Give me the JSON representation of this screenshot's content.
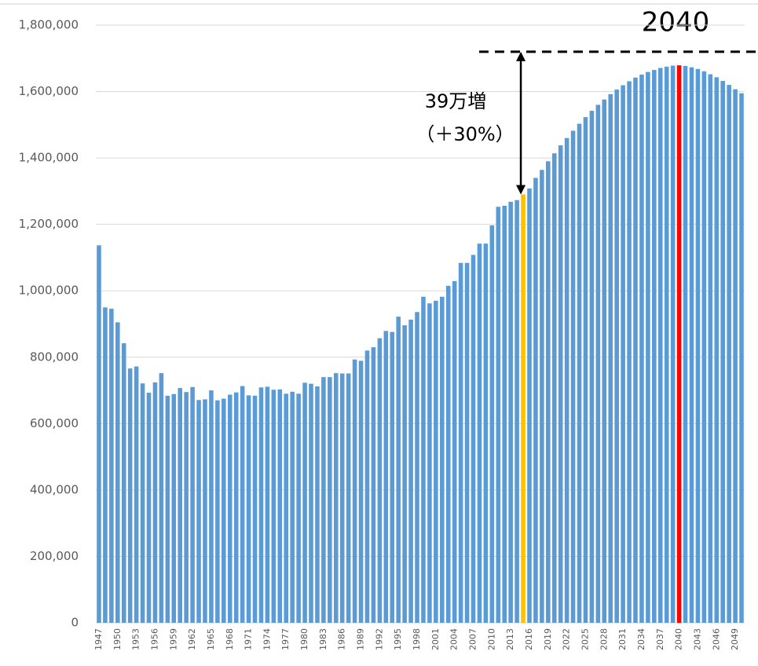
{
  "chart_data": {
    "type": "bar",
    "categories": [
      "1947",
      null,
      null,
      "1950",
      null,
      null,
      "1953",
      null,
      null,
      "1956",
      null,
      null,
      "1959",
      null,
      null,
      "1962",
      null,
      null,
      "1965",
      null,
      null,
      "1968",
      null,
      null,
      "1971",
      null,
      null,
      "1974",
      null,
      null,
      "1977",
      null,
      null,
      "1980",
      null,
      null,
      "1983",
      null,
      null,
      "1986",
      null,
      null,
      "1989",
      null,
      null,
      "1992",
      null,
      null,
      "1995",
      null,
      null,
      "1998",
      null,
      null,
      "2001",
      null,
      null,
      "2004",
      null,
      null,
      "2007",
      null,
      null,
      "2010",
      null,
      null,
      "2013",
      null,
      null,
      "2016",
      null,
      null,
      "2019",
      null,
      null,
      "2022",
      null,
      null,
      "2025",
      null,
      null,
      "2028",
      null,
      null,
      "2031",
      null,
      null,
      "2034",
      null,
      null,
      "2037",
      null,
      null,
      "2040",
      null,
      null,
      "2043",
      null,
      null,
      "2046",
      null,
      null,
      "2049",
      null
    ],
    "values": [
      1137000,
      950000,
      946000,
      905000,
      842000,
      766000,
      772000,
      721000,
      693000,
      724000,
      752000,
      684000,
      689000,
      707000,
      695000,
      710000,
      671000,
      673000,
      700000,
      670000,
      675000,
      687000,
      694000,
      713000,
      685000,
      684000,
      709000,
      711000,
      702000,
      703000,
      690000,
      696000,
      690000,
      723000,
      720000,
      712000,
      740000,
      740000,
      752000,
      751000,
      751000,
      793000,
      789000,
      820000,
      830000,
      857000,
      879000,
      876000,
      922000,
      896000,
      913000,
      936000,
      982000,
      962000,
      970000,
      982000,
      1015000,
      1029000,
      1084000,
      1084000,
      1108000,
      1142000,
      1142000,
      1197000,
      1253000,
      1256000,
      1268000,
      1273000,
      1290000,
      1308000,
      1340000,
      1364000,
      1390000,
      1414000,
      1438000,
      1460000,
      1482000,
      1503000,
      1523000,
      1542000,
      1560000,
      1576000,
      1592000,
      1606000,
      1619000,
      1631000,
      1642000,
      1651000,
      1659000,
      1665000,
      1671000,
      1675000,
      1678000,
      1679000,
      1677000,
      1673000,
      1668000,
      1661000,
      1652000,
      1643000,
      1632000,
      1620000,
      1607000,
      1595000
    ],
    "colors": [
      "#5b9bd5",
      "#5b9bd5",
      "#5b9bd5",
      "#5b9bd5",
      "#5b9bd5",
      "#5b9bd5",
      "#5b9bd5",
      "#5b9bd5",
      "#5b9bd5",
      "#5b9bd5",
      "#5b9bd5",
      "#5b9bd5",
      "#5b9bd5",
      "#5b9bd5",
      "#5b9bd5",
      "#5b9bd5",
      "#5b9bd5",
      "#5b9bd5",
      "#5b9bd5",
      "#5b9bd5",
      "#5b9bd5",
      "#5b9bd5",
      "#5b9bd5",
      "#5b9bd5",
      "#5b9bd5",
      "#5b9bd5",
      "#5b9bd5",
      "#5b9bd5",
      "#5b9bd5",
      "#5b9bd5",
      "#5b9bd5",
      "#5b9bd5",
      "#5b9bd5",
      "#5b9bd5",
      "#5b9bd5",
      "#5b9bd5",
      "#5b9bd5",
      "#5b9bd5",
      "#5b9bd5",
      "#5b9bd5",
      "#5b9bd5",
      "#5b9bd5",
      "#5b9bd5",
      "#5b9bd5",
      "#5b9bd5",
      "#5b9bd5",
      "#5b9bd5",
      "#5b9bd5",
      "#5b9bd5",
      "#5b9bd5",
      "#5b9bd5",
      "#5b9bd5",
      "#5b9bd5",
      "#5b9bd5",
      "#5b9bd5",
      "#5b9bd5",
      "#5b9bd5",
      "#5b9bd5",
      "#5b9bd5",
      "#5b9bd5",
      "#5b9bd5",
      "#5b9bd5",
      "#5b9bd5",
      "#5b9bd5",
      "#5b9bd5",
      "#5b9bd5",
      "#5b9bd5",
      "#5b9bd5",
      "#ffc000",
      "#5b9bd5",
      "#5b9bd5",
      "#5b9bd5",
      "#5b9bd5",
      "#5b9bd5",
      "#5b9bd5",
      "#5b9bd5",
      "#5b9bd5",
      "#5b9bd5",
      "#5b9bd5",
      "#5b9bd5",
      "#5b9bd5",
      "#5b9bd5",
      "#5b9bd5",
      "#5b9bd5",
      "#5b9bd5",
      "#5b9bd5",
      "#5b9bd5",
      "#5b9bd5",
      "#5b9bd5",
      "#5b9bd5",
      "#5b9bd5",
      "#5b9bd5",
      "#5b9bd5",
      "#ff0000",
      "#5b9bd5",
      "#5b9bd5",
      "#5b9bd5",
      "#5b9bd5",
      "#5b9bd5",
      "#5b9bd5",
      "#5b9bd5",
      "#5b9bd5",
      "#5b9bd5",
      "#5b9bd5"
    ],
    "ylim": [
      0,
      1800000
    ],
    "yticks": [
      0,
      {
        "value": 200000,
        "label": "200,000"
      },
      {
        "value": 400000,
        "label": "400,000"
      },
      {
        "value": 600000,
        "label": "600,000"
      },
      {
        "value": 800000,
        "label": "800,000"
      },
      {
        "value": 1000000,
        "label": "1,000,000"
      },
      {
        "value": 1200000,
        "label": "1,200,000"
      },
      {
        "value": 1400000,
        "label": "1,400,000"
      },
      {
        "value": 1600000,
        "label": "1,600,000"
      },
      {
        "value": 1800000,
        "label": "1,800,000"
      }
    ],
    "grid": true,
    "annotations": {
      "peak_label": "2040",
      "peak_line": 1720000,
      "increase_label": "39万増",
      "increase_pct": "（＋30%）"
    }
  }
}
